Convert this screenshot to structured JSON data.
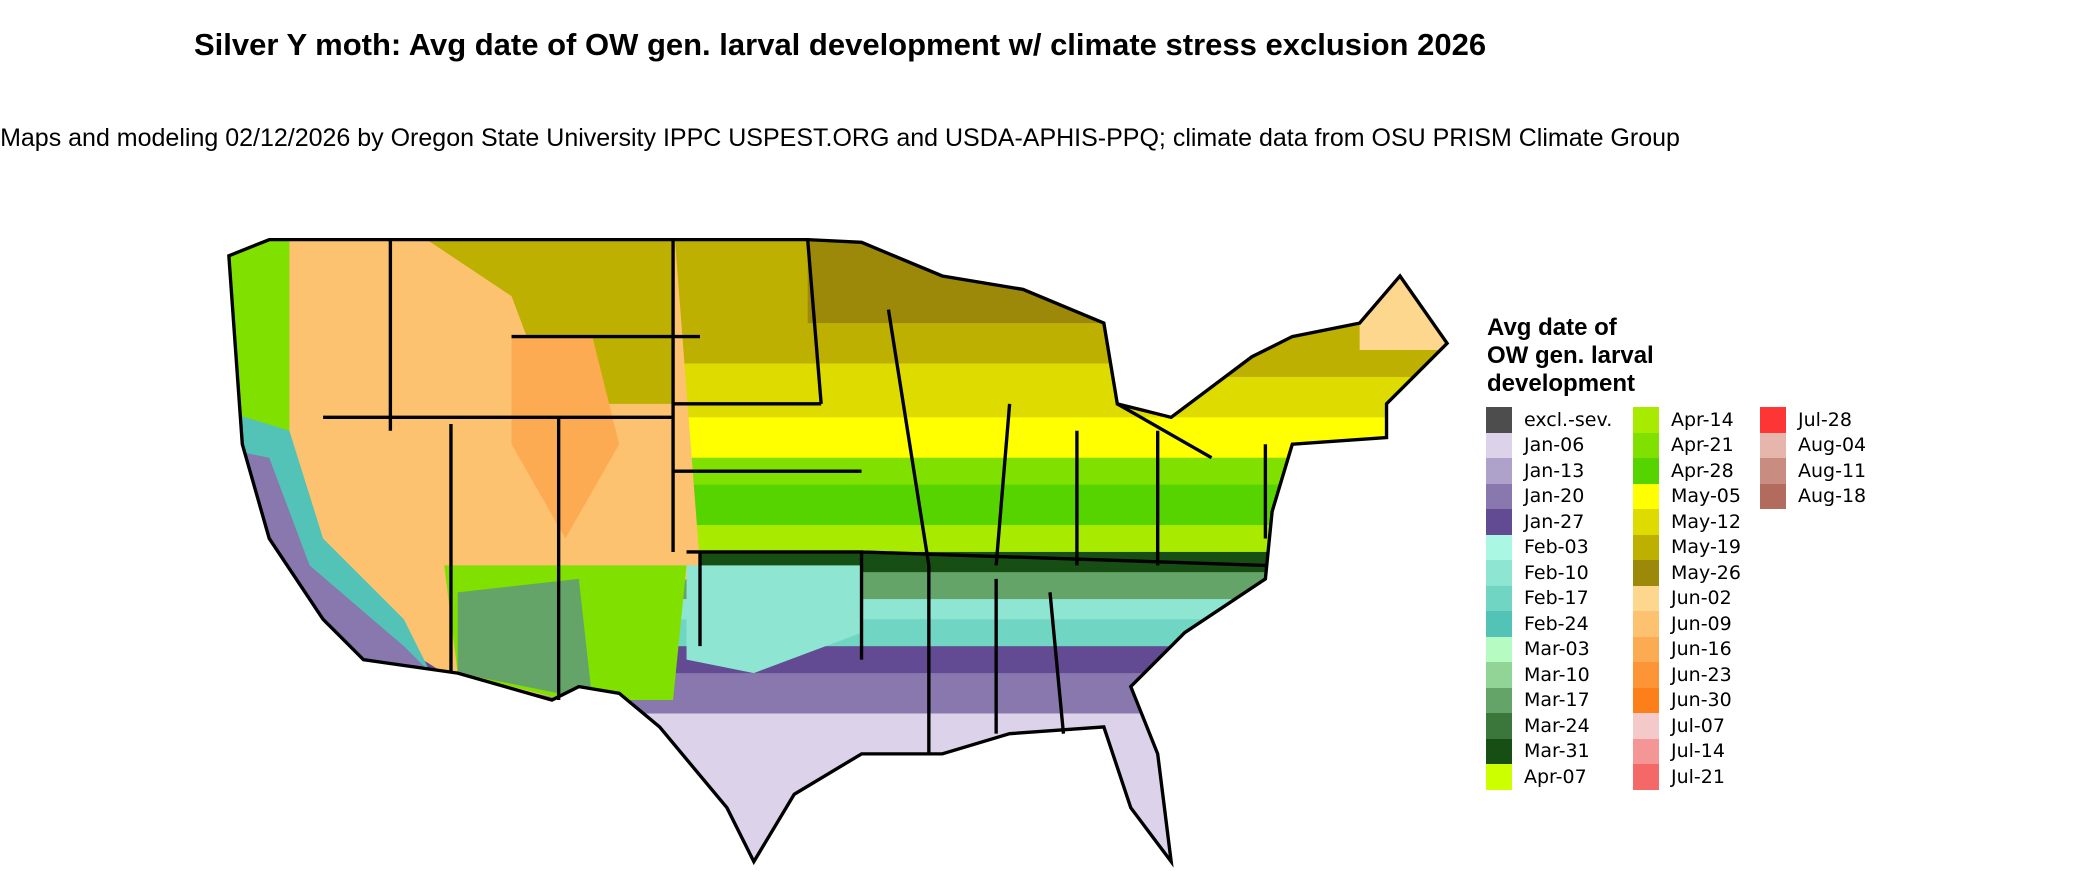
{
  "title": "Silver Y moth: Avg date of OW gen. larval development w/ climate stress exclusion 2026",
  "subtitle": "Maps and modeling 02/12/2026 by Oregon State University IPPC USPEST.ORG and USDA-APHIS-PPQ; climate data from OSU PRISM Climate Group",
  "legend": {
    "title": "Avg date of OW gen. larval development",
    "columns": [
      [
        {
          "label": "excl.-sev.",
          "color": "#4d4d4d"
        },
        {
          "label": "Jan-06",
          "color": "#dcd3ea"
        },
        {
          "label": "Jan-13",
          "color": "#aea2ca"
        },
        {
          "label": "Jan-20",
          "color": "#8878ae"
        },
        {
          "label": "Jan-27",
          "color": "#634b93"
        },
        {
          "label": "Feb-03",
          "color": "#aaf7e3"
        },
        {
          "label": "Feb-10",
          "color": "#8ee5d2"
        },
        {
          "label": "Feb-17",
          "color": "#70d5c3"
        },
        {
          "label": "Feb-24",
          "color": "#52c3b6"
        },
        {
          "label": "Mar-03",
          "color": "#b5fbc2"
        },
        {
          "label": "Mar-10",
          "color": "#92d496"
        },
        {
          "label": "Mar-17",
          "color": "#65a468"
        },
        {
          "label": "Mar-24",
          "color": "#3b773a"
        },
        {
          "label": "Mar-31",
          "color": "#174e13"
        },
        {
          "label": "Apr-07",
          "color": "#ccff00"
        }
      ],
      [
        {
          "label": "Apr-14",
          "color": "#a8eb00"
        },
        {
          "label": "Apr-21",
          "color": "#80e000"
        },
        {
          "label": "Apr-28",
          "color": "#55d400"
        },
        {
          "label": "May-05",
          "color": "#ffff00"
        },
        {
          "label": "May-12",
          "color": "#dddb00"
        },
        {
          "label": "May-19",
          "color": "#bdb000"
        },
        {
          "label": "May-26",
          "color": "#9c890a"
        },
        {
          "label": "Jun-02",
          "color": "#fdd78d"
        },
        {
          "label": "Jun-09",
          "color": "#fdc270"
        },
        {
          "label": "Jun-16",
          "color": "#fdab52"
        },
        {
          "label": "Jun-23",
          "color": "#fd9536"
        },
        {
          "label": "Jun-30",
          "color": "#fd7f1a"
        },
        {
          "label": "Jul-07",
          "color": "#f4c9c9"
        },
        {
          "label": "Jul-14",
          "color": "#f49696"
        },
        {
          "label": "Jul-21",
          "color": "#f46868"
        }
      ],
      [
        {
          "label": "Jul-28",
          "color": "#fd3535"
        },
        {
          "label": "Aug-04",
          "color": "#e6b6ad"
        },
        {
          "label": "Aug-11",
          "color": "#c98c80"
        },
        {
          "label": "Aug-18",
          "color": "#b26b5c"
        }
      ]
    ]
  }
}
